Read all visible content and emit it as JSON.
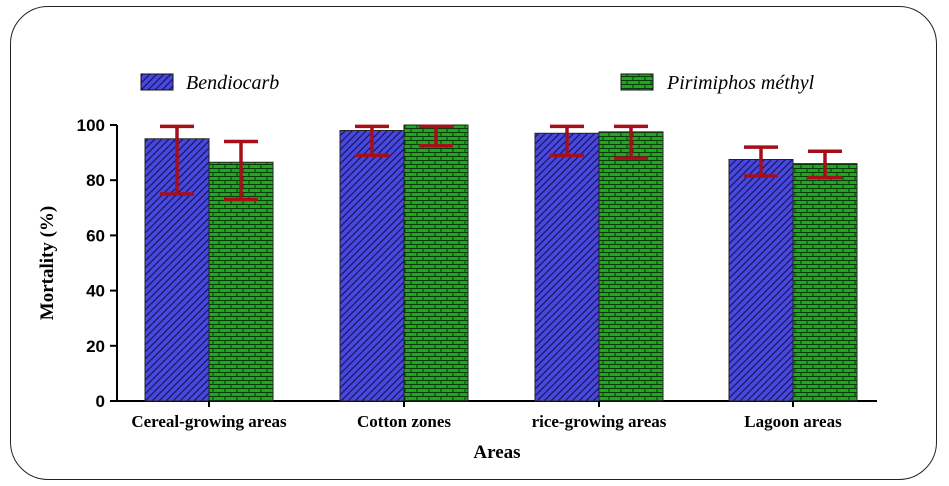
{
  "chart_data": {
    "type": "bar",
    "categories": [
      "Cereal-growing areas",
      "Cotton zones",
      "rice-growing areas",
      "Lagoon areas"
    ],
    "series": [
      {
        "name": "Bendiocarb",
        "values": [
          95,
          98,
          97,
          87.5
        ],
        "error_low": [
          75,
          89,
          89,
          81.5
        ],
        "error_high": [
          99.5,
          99.5,
          99.5,
          92
        ],
        "color": "#4848e0",
        "pattern": "diagonal-hatch"
      },
      {
        "name": "Pirimiphos méthyl",
        "values": [
          86.5,
          100,
          97.5,
          86
        ],
        "error_low": [
          73,
          92.5,
          88,
          81
        ],
        "error_high": [
          94,
          99.5,
          99.5,
          90.5
        ],
        "color": "#1ea81e",
        "pattern": "brick"
      }
    ],
    "error_bar_color": "#a50f1a",
    "xlabel": "Areas",
    "ylabel": "Mortality (%)",
    "ylim": [
      0,
      100
    ],
    "yticks": [
      "0",
      "20",
      "40",
      "60",
      "80",
      "100"
    ],
    "grid": false,
    "legend_position": "top"
  }
}
